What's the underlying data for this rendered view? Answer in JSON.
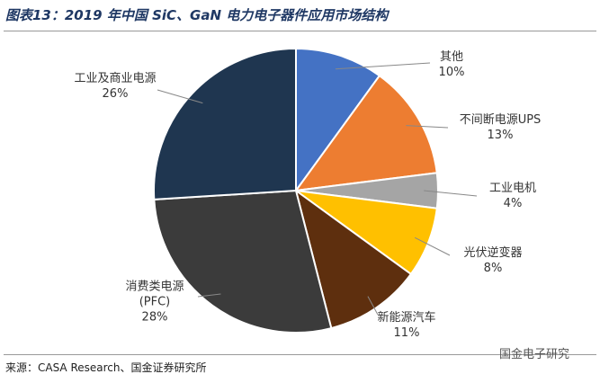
{
  "title": "图表13：2019 年中国 SiC、GaN 电力电子器件应用市场结构",
  "source": "来源：CASA Research、国金证券研究所",
  "watermark": "国金电子研究",
  "chart_data": {
    "type": "pie",
    "categories": [
      "其他",
      "不间断电源UPS",
      "工业电机",
      "光伏逆变器",
      "新能源汽车",
      "消费类电源(PFC)",
      "工业及商业电源"
    ],
    "values": [
      10,
      13,
      4,
      8,
      11,
      28,
      26
    ],
    "value_labels": [
      "10%",
      "13%",
      "4%",
      "8%",
      "11%",
      "28%",
      "26%"
    ],
    "colors": [
      "#4472c4",
      "#ed7d31",
      "#a5a5a5",
      "#ffc000",
      "#5e2f0e",
      "#3b3b3b",
      "#1f3650"
    ]
  }
}
